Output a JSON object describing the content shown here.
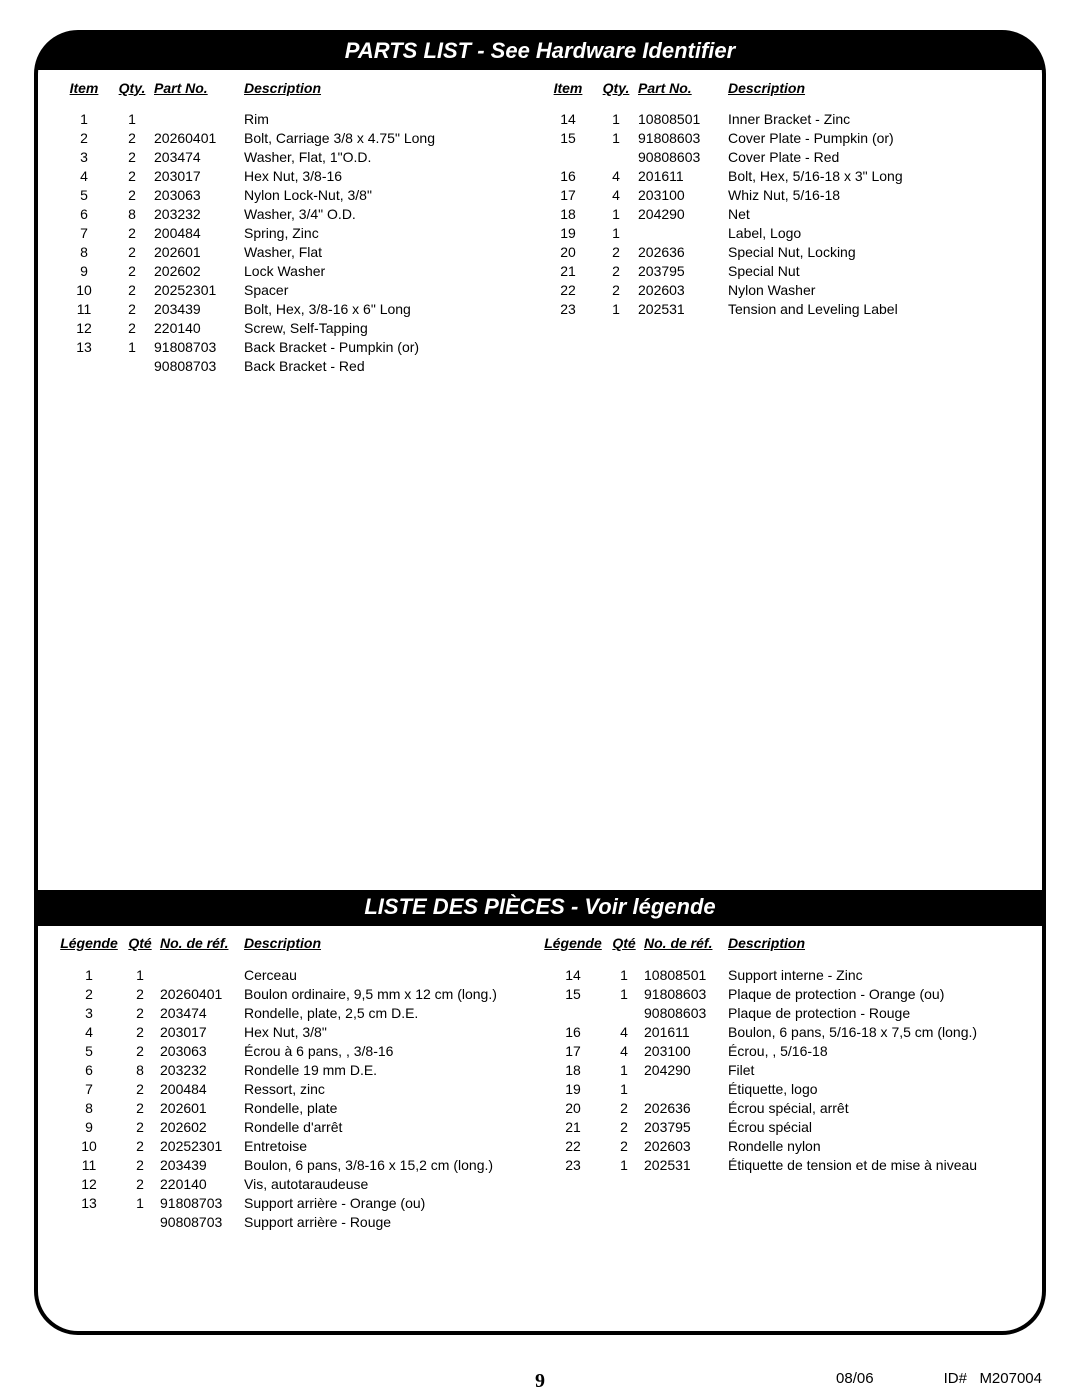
{
  "sections": {
    "en": {
      "title": "PARTS LIST - See Hardware Identifier",
      "headers": {
        "item": "Item",
        "qty": "Qty.",
        "part": "Part No.",
        "desc": "Description"
      },
      "left": [
        {
          "item": "1",
          "qty": "1",
          "part": "",
          "desc": "Rim"
        },
        {
          "item": "2",
          "qty": "2",
          "part": "20260401",
          "desc": "Bolt, Carriage 3/8 x 4.75\" Long"
        },
        {
          "item": "3",
          "qty": "2",
          "part": "203474",
          "desc": "Washer, Flat, 1\"O.D."
        },
        {
          "item": "4",
          "qty": "2",
          "part": "203017",
          "desc": "Hex Nut, 3/8-16"
        },
        {
          "item": "5",
          "qty": "2",
          "part": "203063",
          "desc": "Nylon Lock-Nut, 3/8\""
        },
        {
          "item": "6",
          "qty": "8",
          "part": "203232",
          "desc": "Washer, 3/4\" O.D."
        },
        {
          "item": "7",
          "qty": "2",
          "part": "200484",
          "desc": "Spring, Zinc"
        },
        {
          "item": "8",
          "qty": "2",
          "part": "202601",
          "desc": "Washer, Flat"
        },
        {
          "item": "9",
          "qty": "2",
          "part": "202602",
          "desc": "Lock Washer"
        },
        {
          "item": "10",
          "qty": "2",
          "part": "20252301",
          "desc": "Spacer"
        },
        {
          "item": "11",
          "qty": "2",
          "part": "203439",
          "desc": "Bolt, Hex, 3/8-16 x 6\" Long"
        },
        {
          "item": "12",
          "qty": "2",
          "part": "220140",
          "desc": "Screw, Self-Tapping"
        },
        {
          "item": "13",
          "qty": "1",
          "part": "91808703",
          "desc": "Back Bracket - Pumpkin (or)"
        },
        {
          "item": "",
          "qty": "",
          "part": "90808703",
          "desc": "Back Bracket - Red"
        }
      ],
      "right": [
        {
          "item": "14",
          "qty": "1",
          "part": "10808501",
          "desc": "Inner Bracket - Zinc"
        },
        {
          "item": "15",
          "qty": "1",
          "part": "91808603",
          "desc": "Cover Plate - Pumpkin (or)"
        },
        {
          "item": "",
          "qty": "",
          "part": "90808603",
          "desc": "Cover Plate - Red"
        },
        {
          "item": "16",
          "qty": "4",
          "part": "201611",
          "desc": "Bolt, Hex, 5/16-18 x 3\" Long"
        },
        {
          "item": "17",
          "qty": "4",
          "part": "203100",
          "desc": "Whiz Nut, 5/16-18"
        },
        {
          "item": "18",
          "qty": "1",
          "part": "204290",
          "desc": "Net"
        },
        {
          "item": "19",
          "qty": "1",
          "part": "",
          "desc": "Label, Logo"
        },
        {
          "item": "20",
          "qty": "2",
          "part": "202636",
          "desc": "Special Nut, Locking"
        },
        {
          "item": "21",
          "qty": "2",
          "part": "203795",
          "desc": "Special Nut"
        },
        {
          "item": "22",
          "qty": "2",
          "part": "202603",
          "desc": "Nylon Washer"
        },
        {
          "item": "23",
          "qty": "1",
          "part": "202531",
          "desc": "Tension and Leveling Label"
        }
      ]
    },
    "fr": {
      "title": "LISTE DES PIÈCES - Voir légende",
      "headers": {
        "item": "Légende",
        "qty": "Qté",
        "part": "No. de réf.",
        "desc": "Description"
      },
      "left": [
        {
          "item": "1",
          "qty": "1",
          "part": "",
          "desc": "Cerceau"
        },
        {
          "item": "2",
          "qty": "2",
          "part": "20260401",
          "desc": "Boulon ordinaire, 9,5 mm x 12 cm (long.)"
        },
        {
          "item": "3",
          "qty": "2",
          "part": "203474",
          "desc": "Rondelle, plate, 2,5 cm D.E."
        },
        {
          "item": "4",
          "qty": "2",
          "part": "203017",
          "desc": "Hex Nut, 3/8\""
        },
        {
          "item": "5",
          "qty": "2",
          "part": "203063",
          "desc": "Écrou à 6 pans, , 3/8-16"
        },
        {
          "item": "6",
          "qty": "8",
          "part": "203232",
          "desc": "Rondelle 19 mm D.E."
        },
        {
          "item": "7",
          "qty": "2",
          "part": "200484",
          "desc": "Ressort, zinc"
        },
        {
          "item": "8",
          "qty": "2",
          "part": "202601",
          "desc": "Rondelle, plate"
        },
        {
          "item": "9",
          "qty": "2",
          "part": "202602",
          "desc": "Rondelle d'arrêt"
        },
        {
          "item": "10",
          "qty": "2",
          "part": "20252301",
          "desc": "Entretoise"
        },
        {
          "item": "11",
          "qty": "2",
          "part": "203439",
          "desc": "Boulon, 6 pans, 3/8-16 x 15,2 cm (long.)"
        },
        {
          "item": "12",
          "qty": "2",
          "part": "220140",
          "desc": "Vis, autotaraudeuse"
        },
        {
          "item": "13",
          "qty": "1",
          "part": "91808703",
          "desc": "Support arrière - Orange (ou)"
        },
        {
          "item": "",
          "qty": "",
          "part": "90808703",
          "desc": "Support arrière - Rouge"
        }
      ],
      "right": [
        {
          "item": "14",
          "qty": "1",
          "part": "10808501",
          "desc": "Support interne - Zinc"
        },
        {
          "item": "15",
          "qty": "1",
          "part": "91808603",
          "desc": "Plaque de protection - Orange (ou)"
        },
        {
          "item": "",
          "qty": "",
          "part": "90808603",
          "desc": "Plaque de protection - Rouge"
        },
        {
          "item": "16",
          "qty": "4",
          "part": "201611",
          "desc": "Boulon, 6 pans, 5/16-18 x 7,5 cm (long.)"
        },
        {
          "item": "17",
          "qty": "4",
          "part": "203100",
          "desc": "Écrou, , 5/16-18"
        },
        {
          "item": "18",
          "qty": "1",
          "part": "204290",
          "desc": "Filet"
        },
        {
          "item": "19",
          "qty": "1",
          "part": "",
          "desc": "Étiquette, logo"
        },
        {
          "item": "20",
          "qty": "2",
          "part": "202636",
          "desc": "Écrou spécial, arrêt"
        },
        {
          "item": "21",
          "qty": "2",
          "part": "203795",
          "desc": "Écrou spécial"
        },
        {
          "item": "22",
          "qty": "2",
          "part": "202603",
          "desc": "Rondelle nylon"
        },
        {
          "item": "23",
          "qty": "1",
          "part": "202531",
          "desc": "Étiquette de tension et de mise à niveau"
        }
      ]
    }
  },
  "footer": {
    "page": "9",
    "date": "08/06",
    "id_label": "ID#",
    "id_value": "M207004"
  }
}
